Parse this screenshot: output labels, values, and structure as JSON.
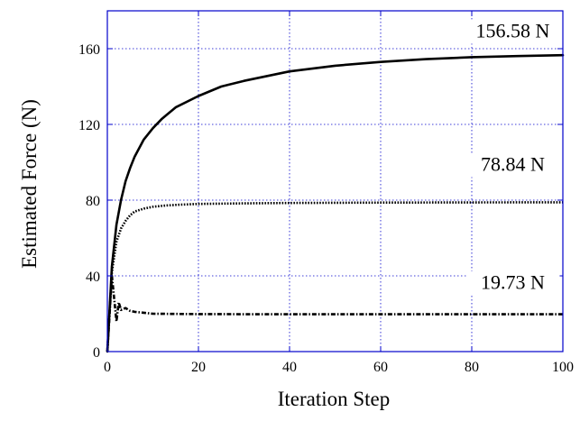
{
  "chart_data": {
    "type": "line",
    "title": "",
    "xlabel": "Iteration Step",
    "ylabel": "Estimated Force (N)",
    "xlim": [
      0,
      100
    ],
    "ylim": [
      0,
      180
    ],
    "xticks": [
      0,
      20,
      40,
      60,
      80,
      100
    ],
    "yticks": [
      0,
      40,
      80,
      120,
      160
    ],
    "grid": true,
    "legend": "none",
    "colors": {
      "line": "#000000",
      "grid": "#0000cc",
      "frame": "#0000cc",
      "background": "#ffffff"
    },
    "series": [
      {
        "style": "solid",
        "x": [
          0,
          1,
          2,
          3,
          4,
          5,
          6,
          8,
          10,
          12,
          15,
          20,
          25,
          30,
          40,
          50,
          60,
          70,
          80,
          90,
          100
        ],
        "y": [
          0,
          45,
          67,
          80,
          90,
          97,
          103,
          112,
          118,
          123,
          129,
          135,
          140,
          143,
          148,
          151,
          153,
          154.5,
          155.5,
          156.1,
          156.58
        ]
      },
      {
        "style": "dotted",
        "x": [
          0,
          1,
          1.5,
          2,
          3,
          4,
          5,
          6,
          8,
          10,
          13,
          16,
          20,
          30,
          40,
          60,
          80,
          100
        ],
        "y": [
          0,
          42,
          50,
          58,
          65,
          69,
          72,
          74,
          75.5,
          76.5,
          77.2,
          77.6,
          78,
          78.3,
          78.5,
          78.7,
          78.8,
          78.84
        ]
      },
      {
        "style": "dash-dot",
        "x": [
          0,
          1,
          1.5,
          2,
          2.5,
          3,
          4,
          5,
          6,
          8,
          10,
          15,
          20,
          30,
          50,
          70,
          100
        ],
        "y": [
          0,
          40,
          28,
          16,
          26,
          22,
          23,
          21.5,
          21,
          20.5,
          20,
          19.9,
          19.8,
          19.75,
          19.74,
          19.73,
          19.73
        ]
      }
    ],
    "annotations": [
      {
        "text": "156.58 N",
        "x": 89,
        "y": 166
      },
      {
        "text": "78.84 N",
        "x": 89,
        "y": 95.5
      },
      {
        "text": "19.73 N",
        "x": 89,
        "y": 33
      }
    ]
  }
}
